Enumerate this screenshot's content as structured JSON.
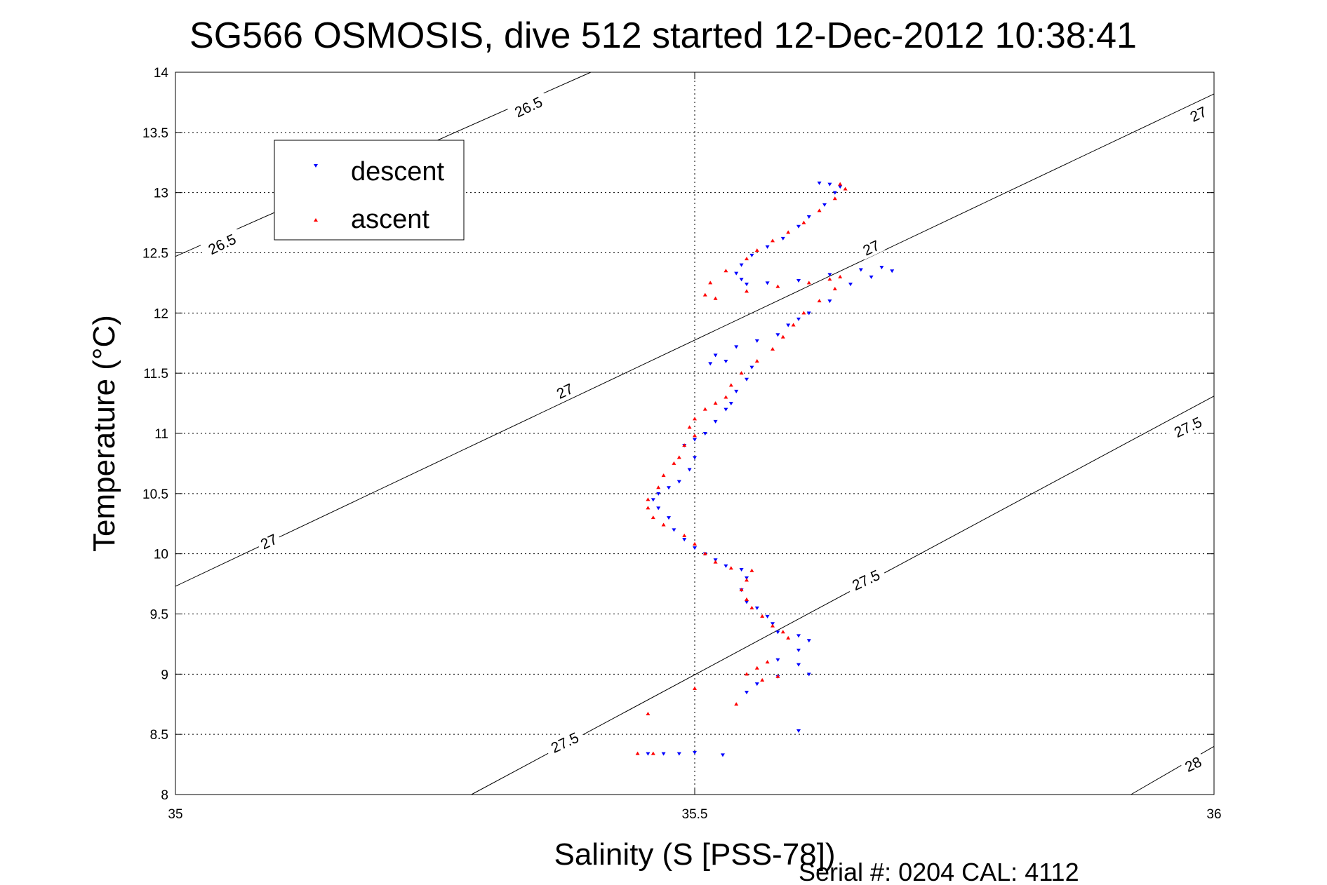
{
  "chart_data": {
    "type": "scatter",
    "title": "SG566 OSMOSIS, dive 512 started 12-Dec-2012 10:38:41",
    "xlabel": "Salinity (S [PSS-78])",
    "ylabel": "Temperature (°C)",
    "xlim": [
      35,
      36
    ],
    "ylim": [
      8,
      14
    ],
    "xticks": [
      "35",
      "35.5",
      "36"
    ],
    "yticks": [
      "8",
      "8.5",
      "9",
      "9.5",
      "10",
      "10.5",
      "11",
      "11.5",
      "12",
      "12.5",
      "13",
      "13.5",
      "14"
    ],
    "grid": true,
    "legend_position": "top-left",
    "footer": "Serial #: 0204  CAL: 4112",
    "series": [
      {
        "name": "descent",
        "color": "#0000ff",
        "marker": "down-triangle",
        "points": [
          [
            35.62,
            13.08
          ],
          [
            35.63,
            13.07
          ],
          [
            35.64,
            13.05
          ],
          [
            35.635,
            13.0
          ],
          [
            35.625,
            12.9
          ],
          [
            35.61,
            12.8
          ],
          [
            35.6,
            12.72
          ],
          [
            35.585,
            12.62
          ],
          [
            35.57,
            12.55
          ],
          [
            35.555,
            12.48
          ],
          [
            35.545,
            12.4
          ],
          [
            35.54,
            12.33
          ],
          [
            35.545,
            12.28
          ],
          [
            35.55,
            12.24
          ],
          [
            35.57,
            12.25
          ],
          [
            35.6,
            12.27
          ],
          [
            35.63,
            12.32
          ],
          [
            35.66,
            12.36
          ],
          [
            35.68,
            12.38
          ],
          [
            35.69,
            12.35
          ],
          [
            35.67,
            12.3
          ],
          [
            35.65,
            12.24
          ],
          [
            35.63,
            12.1
          ],
          [
            35.61,
            12.0
          ],
          [
            35.6,
            11.95
          ],
          [
            35.59,
            11.9
          ],
          [
            35.58,
            11.82
          ],
          [
            35.56,
            11.77
          ],
          [
            35.54,
            11.72
          ],
          [
            35.52,
            11.65
          ],
          [
            35.515,
            11.58
          ],
          [
            35.53,
            11.6
          ],
          [
            35.555,
            11.55
          ],
          [
            35.55,
            11.45
          ],
          [
            35.54,
            11.35
          ],
          [
            35.535,
            11.25
          ],
          [
            35.53,
            11.2
          ],
          [
            35.52,
            11.1
          ],
          [
            35.51,
            11.0
          ],
          [
            35.5,
            10.95
          ],
          [
            35.49,
            10.9
          ],
          [
            35.5,
            10.8
          ],
          [
            35.495,
            10.7
          ],
          [
            35.485,
            10.6
          ],
          [
            35.475,
            10.55
          ],
          [
            35.465,
            10.5
          ],
          [
            35.46,
            10.45
          ],
          [
            35.465,
            10.38
          ],
          [
            35.475,
            10.3
          ],
          [
            35.48,
            10.2
          ],
          [
            35.49,
            10.12
          ],
          [
            35.5,
            10.05
          ],
          [
            35.51,
            10.0
          ],
          [
            35.52,
            9.95
          ],
          [
            35.53,
            9.9
          ],
          [
            35.545,
            9.87
          ],
          [
            35.55,
            9.8
          ],
          [
            35.545,
            9.7
          ],
          [
            35.55,
            9.6
          ],
          [
            35.56,
            9.55
          ],
          [
            35.57,
            9.48
          ],
          [
            35.575,
            9.42
          ],
          [
            35.58,
            9.35
          ],
          [
            35.6,
            9.32
          ],
          [
            35.61,
            9.28
          ],
          [
            35.6,
            9.2
          ],
          [
            35.58,
            9.12
          ],
          [
            35.6,
            9.08
          ],
          [
            35.61,
            9.0
          ],
          [
            35.58,
            8.98
          ],
          [
            35.56,
            8.92
          ],
          [
            35.55,
            8.85
          ],
          [
            35.6,
            8.53
          ],
          [
            35.455,
            8.34
          ],
          [
            35.47,
            8.34
          ],
          [
            35.485,
            8.34
          ],
          [
            35.5,
            8.35
          ],
          [
            35.527,
            8.33
          ]
        ]
      },
      {
        "name": "ascent",
        "color": "#ff0000",
        "marker": "up-triangle",
        "points": [
          [
            35.64,
            13.07
          ],
          [
            35.645,
            13.03
          ],
          [
            35.635,
            12.95
          ],
          [
            35.62,
            12.85
          ],
          [
            35.605,
            12.75
          ],
          [
            35.59,
            12.67
          ],
          [
            35.575,
            12.6
          ],
          [
            35.56,
            12.52
          ],
          [
            35.55,
            12.45
          ],
          [
            35.53,
            12.35
          ],
          [
            35.515,
            12.25
          ],
          [
            35.51,
            12.15
          ],
          [
            35.52,
            12.12
          ],
          [
            35.55,
            12.18
          ],
          [
            35.58,
            12.22
          ],
          [
            35.61,
            12.25
          ],
          [
            35.63,
            12.28
          ],
          [
            35.64,
            12.3
          ],
          [
            35.635,
            12.2
          ],
          [
            35.62,
            12.1
          ],
          [
            35.605,
            12.0
          ],
          [
            35.595,
            11.9
          ],
          [
            35.585,
            11.8
          ],
          [
            35.575,
            11.7
          ],
          [
            35.56,
            11.6
          ],
          [
            35.545,
            11.5
          ],
          [
            35.535,
            11.4
          ],
          [
            35.53,
            11.3
          ],
          [
            35.52,
            11.25
          ],
          [
            35.51,
            11.2
          ],
          [
            35.5,
            11.12
          ],
          [
            35.495,
            11.05
          ],
          [
            35.5,
            10.98
          ],
          [
            35.49,
            10.9
          ],
          [
            35.485,
            10.8
          ],
          [
            35.48,
            10.75
          ],
          [
            35.47,
            10.65
          ],
          [
            35.465,
            10.55
          ],
          [
            35.455,
            10.45
          ],
          [
            35.455,
            10.38
          ],
          [
            35.46,
            10.3
          ],
          [
            35.47,
            10.24
          ],
          [
            35.49,
            10.15
          ],
          [
            35.5,
            10.08
          ],
          [
            35.51,
            10.0
          ],
          [
            35.52,
            9.93
          ],
          [
            35.535,
            9.88
          ],
          [
            35.555,
            9.86
          ],
          [
            35.55,
            9.78
          ],
          [
            35.545,
            9.7
          ],
          [
            35.55,
            9.62
          ],
          [
            35.555,
            9.55
          ],
          [
            35.565,
            9.48
          ],
          [
            35.575,
            9.4
          ],
          [
            35.585,
            9.35
          ],
          [
            35.59,
            9.3
          ],
          [
            35.57,
            9.1
          ],
          [
            35.56,
            9.05
          ],
          [
            35.55,
            9.0
          ],
          [
            35.565,
            8.95
          ],
          [
            35.58,
            8.98
          ],
          [
            35.54,
            8.75
          ],
          [
            35.5,
            8.88
          ],
          [
            35.455,
            8.67
          ],
          [
            35.445,
            8.34
          ],
          [
            35.46,
            8.34
          ]
        ]
      }
    ],
    "isopycnals": [
      {
        "label": "26.5",
        "from": [
          35,
          12.47
        ],
        "to": [
          35.4,
          14.0
        ]
      },
      {
        "label": "27",
        "from": [
          35,
          9.73
        ],
        "to": [
          36,
          13.82
        ]
      },
      {
        "label": "27.5",
        "from": [
          35.285,
          8.0
        ],
        "to": [
          36,
          11.31
        ]
      },
      {
        "label": "28",
        "from": [
          35.92,
          8.0
        ],
        "to": [
          36,
          8.4
        ]
      }
    ],
    "isopycnal_labels": [
      {
        "text": "26.5",
        "at": [
          35.34,
          13.71
        ]
      },
      {
        "text": "26.5",
        "at": [
          35.045,
          12.57
        ]
      },
      {
        "text": "27",
        "at": [
          35.985,
          13.65
        ]
      },
      {
        "text": "27",
        "at": [
          35.67,
          12.54
        ]
      },
      {
        "text": "27",
        "at": [
          35.375,
          11.35
        ]
      },
      {
        "text": "27",
        "at": [
          35.09,
          10.1
        ]
      },
      {
        "text": "27.5",
        "at": [
          35.975,
          11.05
        ]
      },
      {
        "text": "27.5",
        "at": [
          35.665,
          9.78
        ]
      },
      {
        "text": "27.5",
        "at": [
          35.375,
          8.43
        ]
      },
      {
        "text": "28",
        "at": [
          35.98,
          8.25
        ]
      }
    ]
  }
}
